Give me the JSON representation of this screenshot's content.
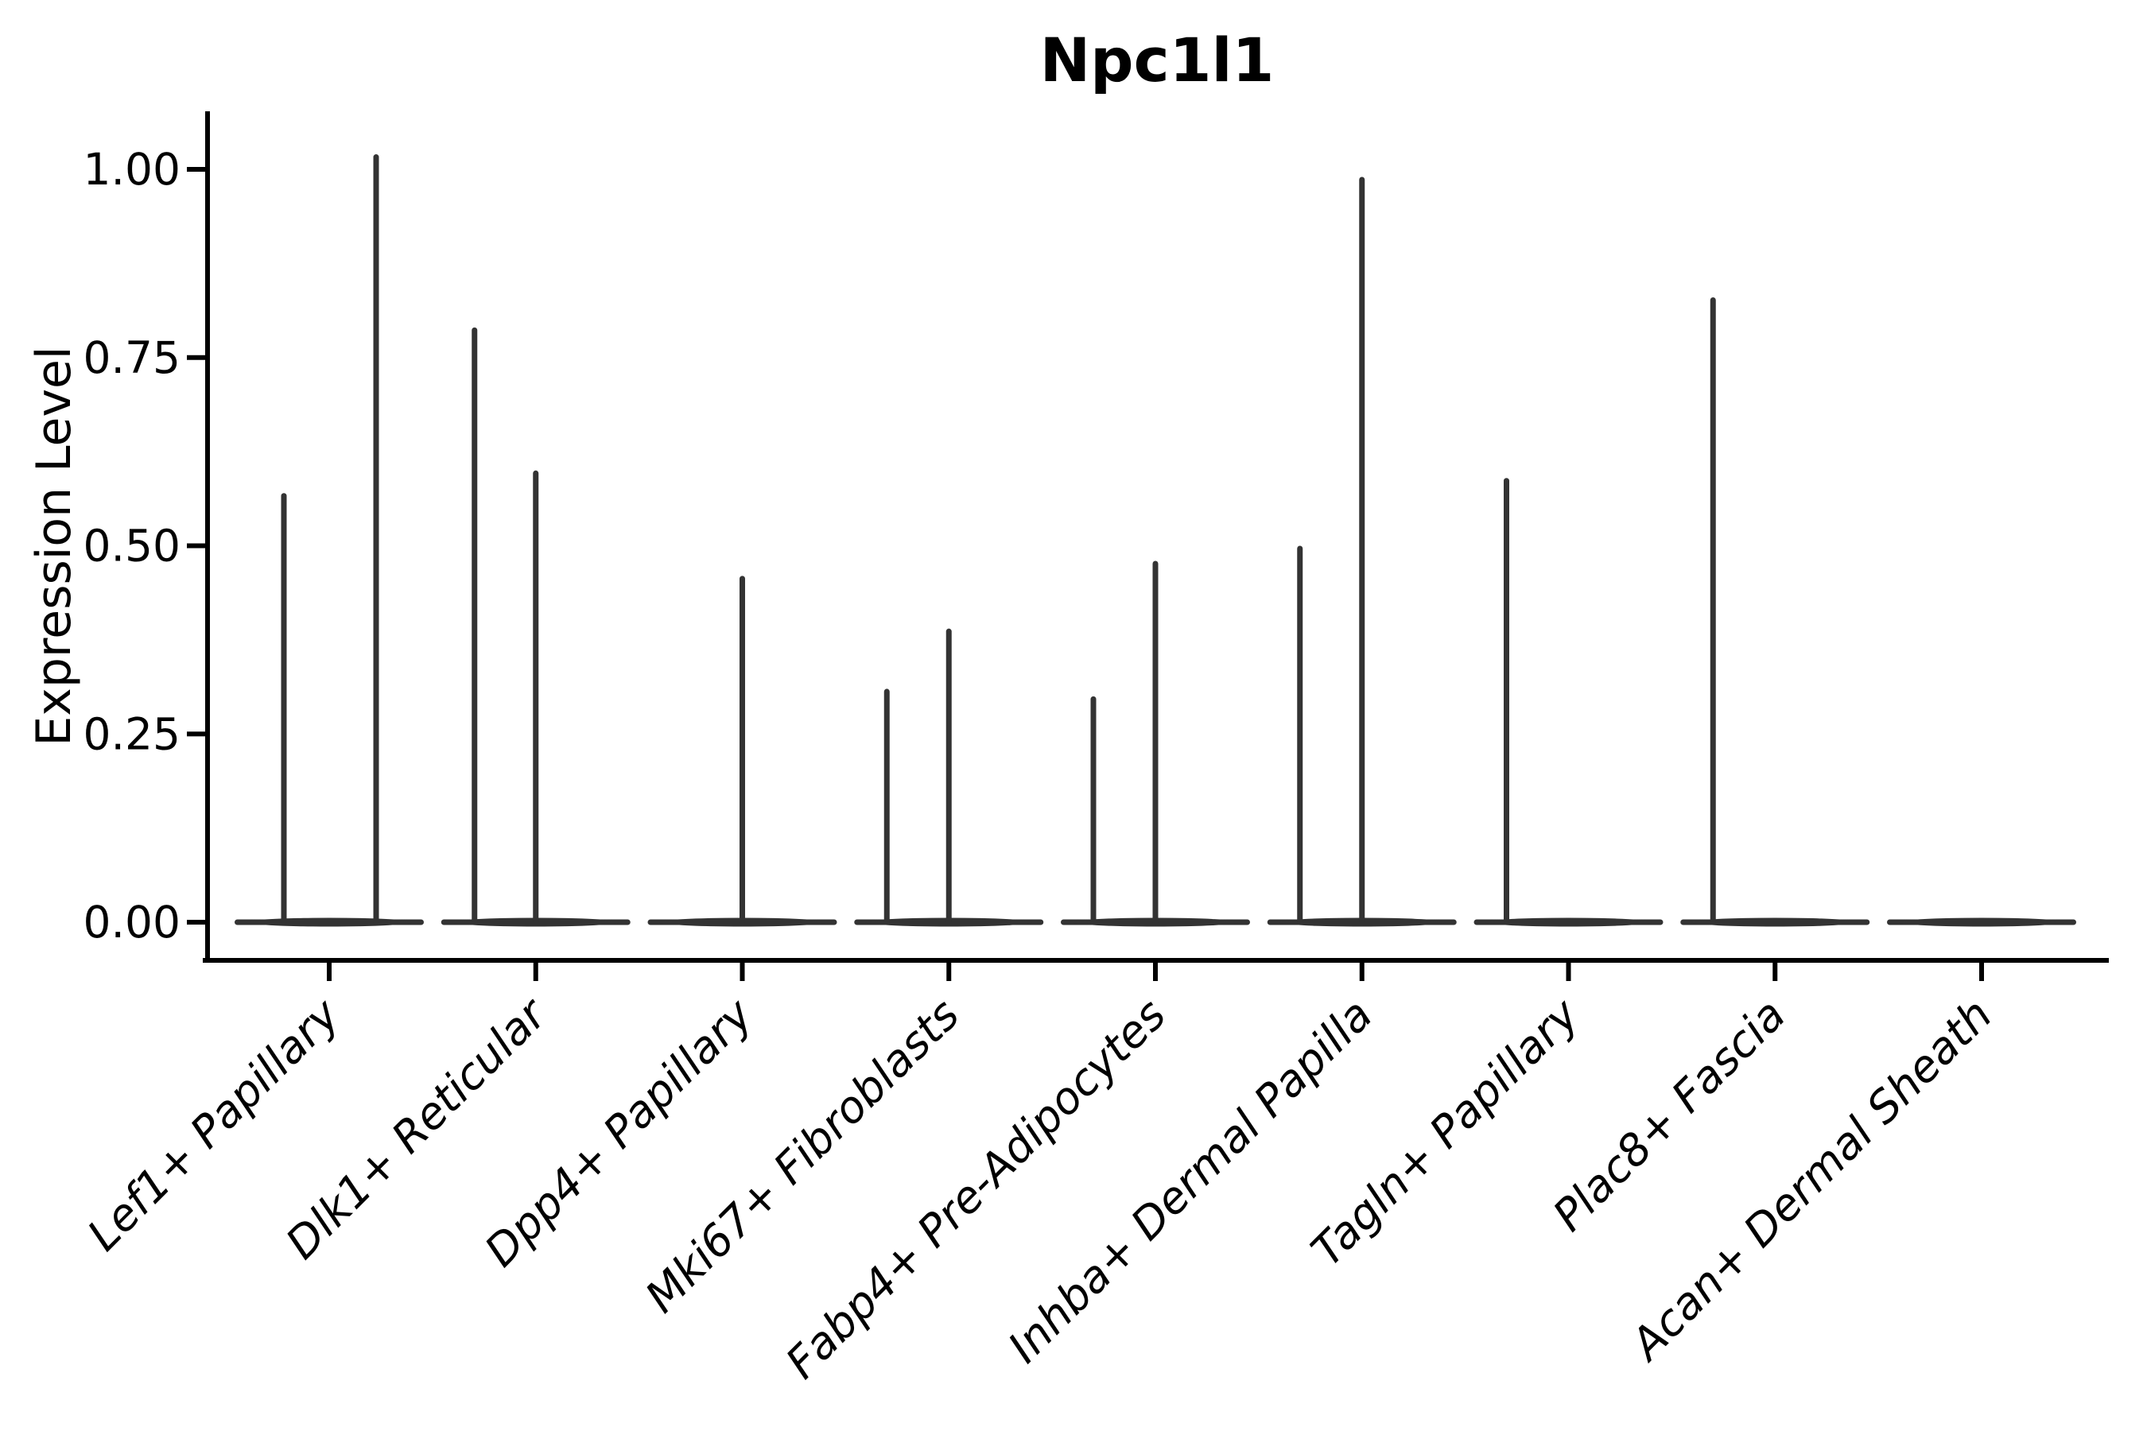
{
  "chart_data": {
    "type": "violin",
    "title": "Npc1l1",
    "xlabel": "",
    "ylabel": "Expression Level",
    "grid": false,
    "legend_position": "none",
    "ylim": [
      -0.05,
      1.08
    ],
    "y_ticks": [
      {
        "value": 1.0,
        "label": "1.00"
      },
      {
        "value": 0.75,
        "label": "0.75"
      },
      {
        "value": 0.5,
        "label": "0.50"
      },
      {
        "value": 0.25,
        "label": "0.25"
      },
      {
        "value": 0.0,
        "label": "0.00"
      }
    ],
    "categories": [
      "Lef1+ Papillary",
      "Dlk1+ Reticular",
      "Dpp4+ Papillary",
      "Mki67+ Fibroblasts",
      "Fabp4+ Pre-Adipocytes",
      "Inhba+ Dermal Papilla",
      "Tagln+ Papillary",
      "Plac8+ Fascia",
      "Acan+ Dermal Sheath"
    ],
    "baseline_value": 0.0,
    "violins": [
      {
        "category": "Lef1+ Papillary",
        "spikes": [
          {
            "dx": -57,
            "max": 0.57
          },
          {
            "dx": 59,
            "max": 1.02
          }
        ]
      },
      {
        "category": "Dlk1+ Reticular",
        "spikes": [
          {
            "dx": -77,
            "max": 0.79
          },
          {
            "dx": 0,
            "max": 0.6
          }
        ]
      },
      {
        "category": "Dpp4+ Papillary",
        "spikes": [
          {
            "dx": 0,
            "max": 0.46
          }
        ]
      },
      {
        "category": "Mki67+ Fibroblasts",
        "spikes": [
          {
            "dx": -78,
            "max": 0.31
          },
          {
            "dx": 0,
            "max": 0.39
          }
        ]
      },
      {
        "category": "Fabp4+ Pre-Adipocytes",
        "spikes": [
          {
            "dx": -78,
            "max": 0.3
          },
          {
            "dx": 0,
            "max": 0.48
          }
        ]
      },
      {
        "category": "Inhba+ Dermal Papilla",
        "spikes": [
          {
            "dx": -78,
            "max": 0.5
          },
          {
            "dx": 0,
            "max": 0.99
          }
        ]
      },
      {
        "category": "Tagln+ Papillary",
        "spikes": [
          {
            "dx": -78,
            "max": 0.59
          }
        ]
      },
      {
        "category": "Plac8+ Fascia",
        "spikes": [
          {
            "dx": -78,
            "max": 0.83
          }
        ]
      },
      {
        "category": "Acan+ Dermal Sheath",
        "spikes": []
      }
    ],
    "colors": {
      "violin": "#333333",
      "axis": "#000000",
      "text": "#000000",
      "background": "#ffffff"
    }
  }
}
